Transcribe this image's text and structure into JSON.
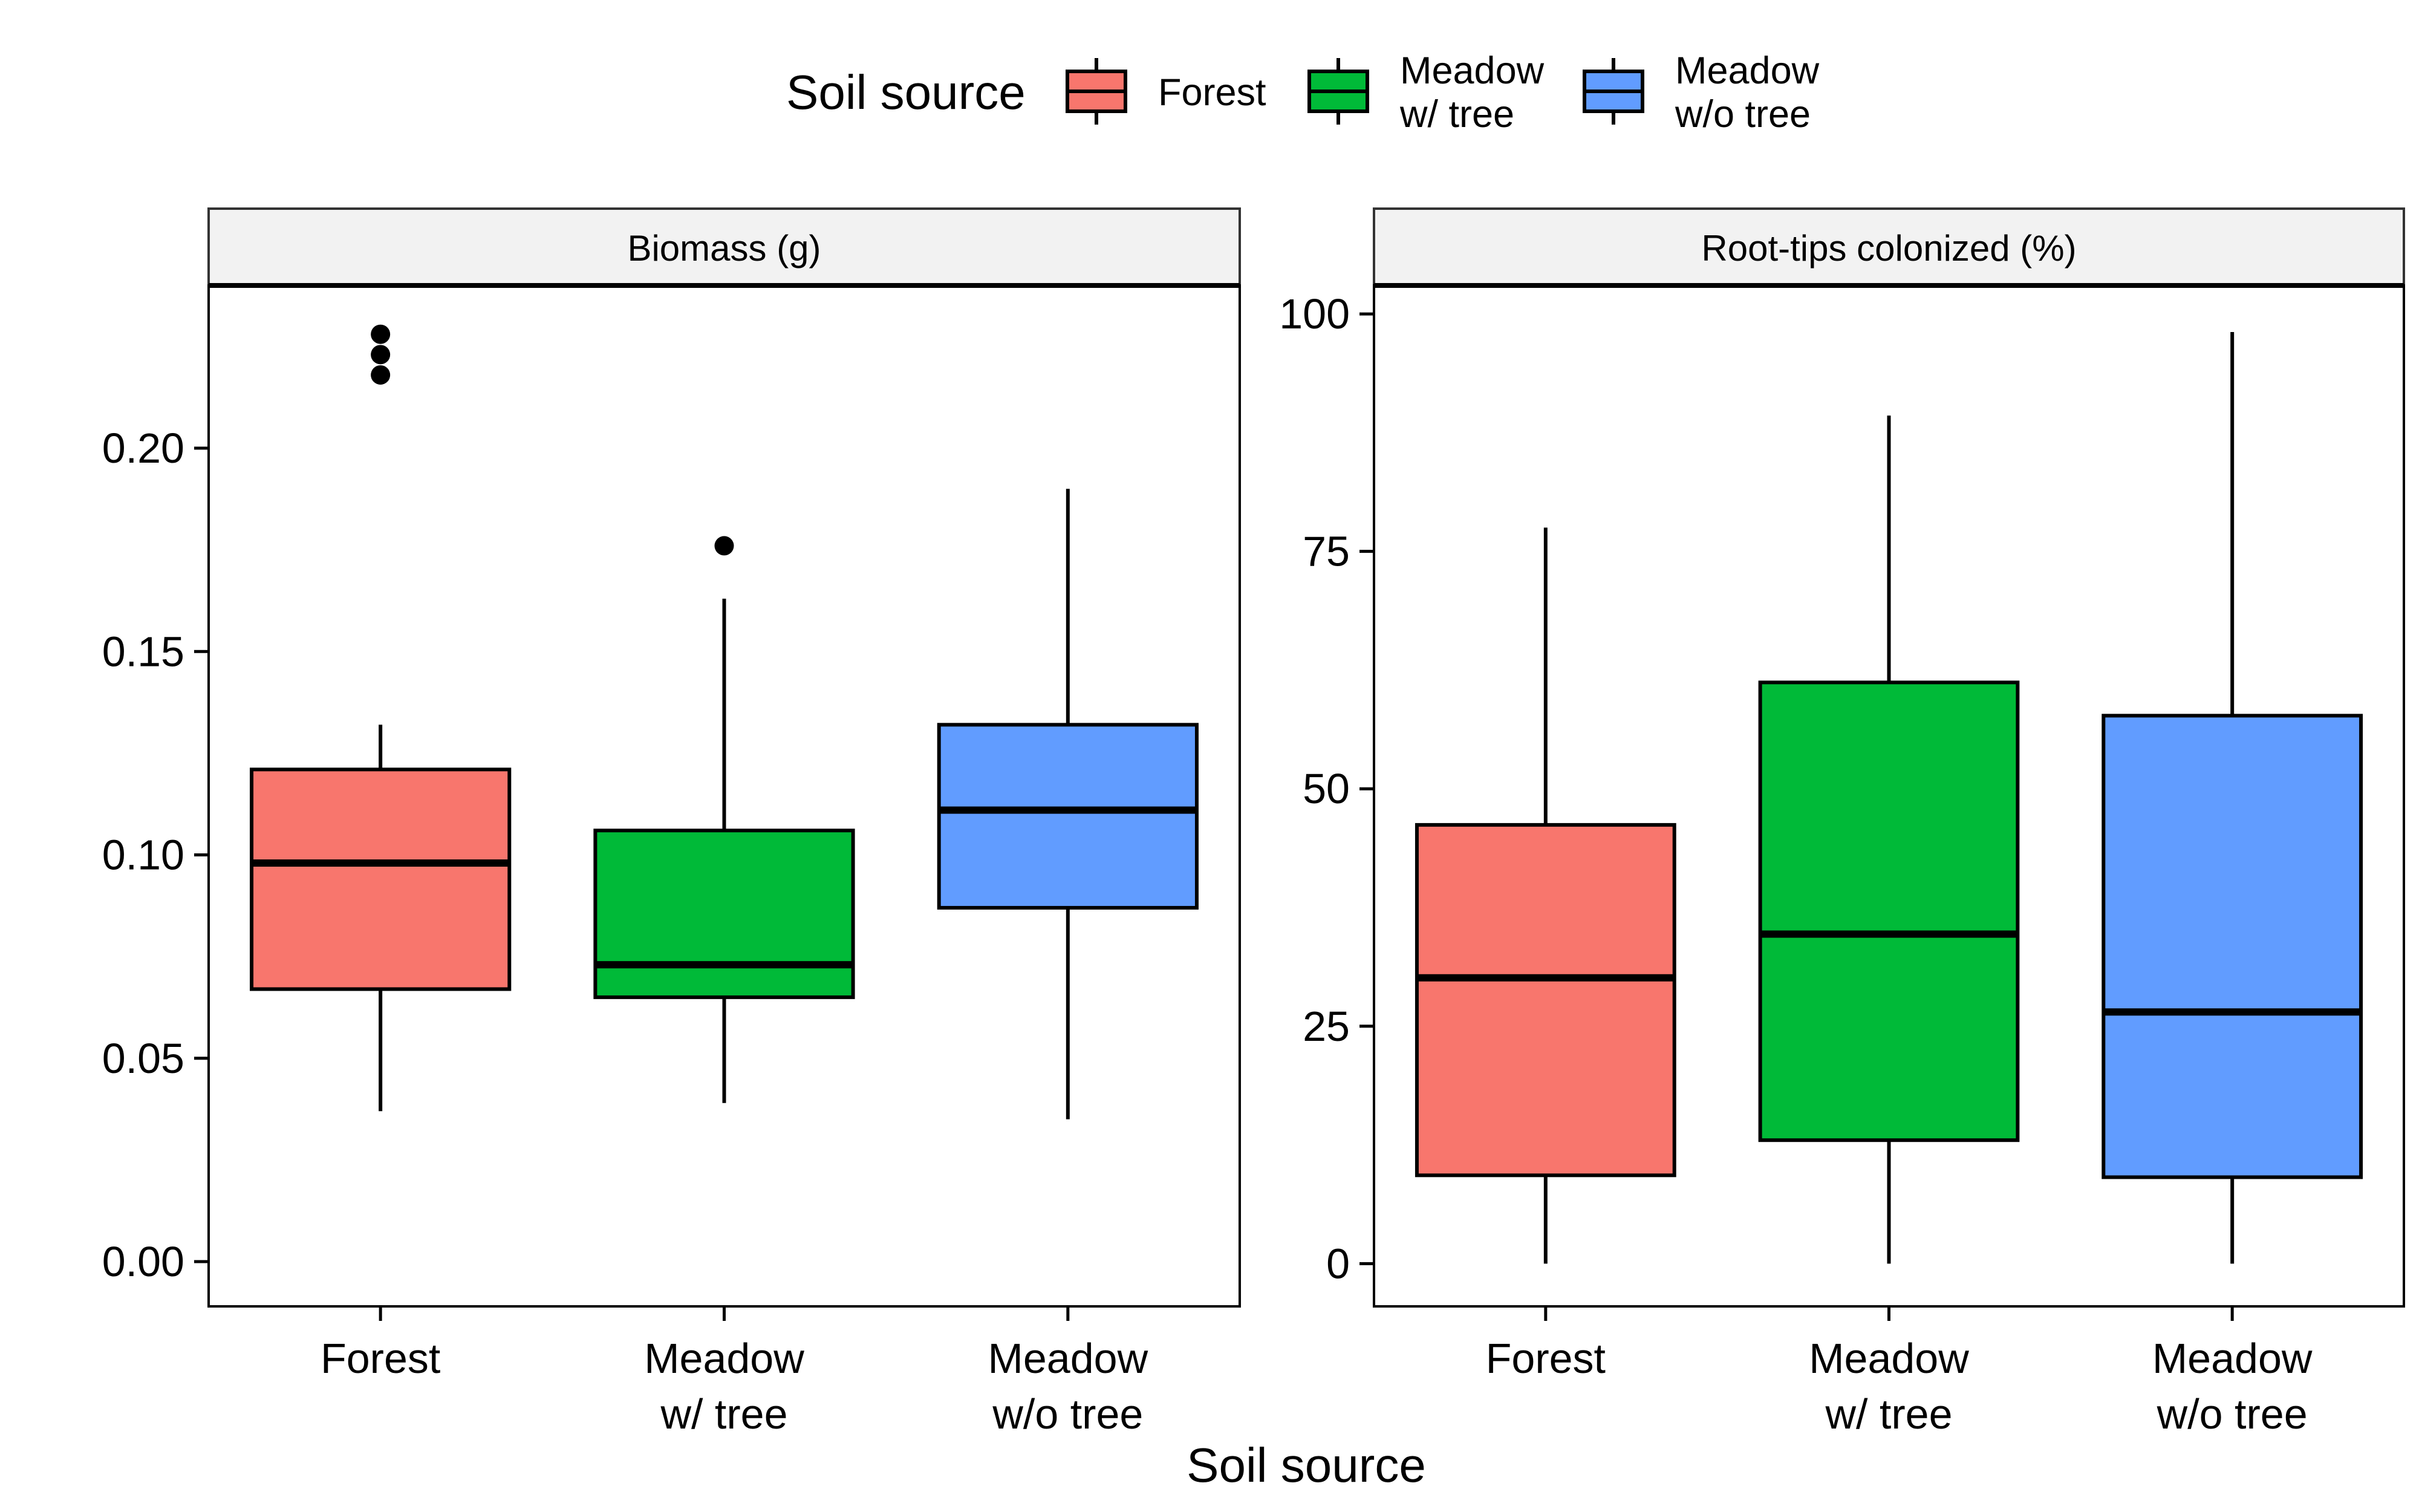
{
  "legend": {
    "title": "Soil source",
    "items": [
      {
        "lines": [
          "Forest"
        ],
        "color": "#F8766D"
      },
      {
        "lines": [
          "Meadow",
          "w/ tree"
        ],
        "color": "#00BA38"
      },
      {
        "lines": [
          "Meadow",
          "w/o tree"
        ],
        "color": "#619CFF"
      }
    ]
  },
  "x_axis_title": "Soil source",
  "chart_data": [
    {
      "type": "boxplot",
      "title": "Biomass (g)",
      "categories": [
        "Forest",
        "Meadow\nw/ tree",
        "Meadow\nw/o tree"
      ],
      "colors": [
        "#F8766D",
        "#00BA38",
        "#619CFF"
      ],
      "ylim": [
        -0.011,
        0.24
      ],
      "yticks": [
        0.0,
        0.05,
        0.1,
        0.15,
        0.2
      ],
      "ytick_labels": [
        "0.00",
        "0.05",
        "0.10",
        "0.15",
        "0.20"
      ],
      "boxes": [
        {
          "whisker_low": 0.037,
          "q1": 0.067,
          "median": 0.098,
          "q3": 0.121,
          "whisker_high": 0.132,
          "outliers": [
            0.218,
            0.223,
            0.228
          ]
        },
        {
          "whisker_low": 0.039,
          "q1": 0.065,
          "median": 0.073,
          "q3": 0.106,
          "whisker_high": 0.163,
          "outliers": [
            0.176
          ]
        },
        {
          "whisker_low": 0.035,
          "q1": 0.087,
          "median": 0.111,
          "q3": 0.132,
          "whisker_high": 0.19,
          "outliers": []
        }
      ]
    },
    {
      "type": "boxplot",
      "title": "Root-tips colonized (%)",
      "categories": [
        "Forest",
        "Meadow\nw/ tree",
        "Meadow\nw/o tree"
      ],
      "colors": [
        "#F8766D",
        "#00BA38",
        "#619CFF"
      ],
      "ylim": [
        -4.5,
        103
      ],
      "yticks": [
        0,
        25,
        50,
        75,
        100
      ],
      "ytick_labels": [
        "0",
        "25",
        "50",
        "75",
        "100"
      ],
      "boxes": [
        {
          "whisker_low": 0,
          "q1": 9.3,
          "median": 30.1,
          "q3": 46.2,
          "whisker_high": 77.5,
          "outliers": []
        },
        {
          "whisker_low": 0,
          "q1": 13,
          "median": 34.7,
          "q3": 61.2,
          "whisker_high": 89.3,
          "outliers": []
        },
        {
          "whisker_low": 0,
          "q1": 9.1,
          "median": 26.5,
          "q3": 57.7,
          "whisker_high": 98.1,
          "outliers": []
        }
      ]
    }
  ]
}
